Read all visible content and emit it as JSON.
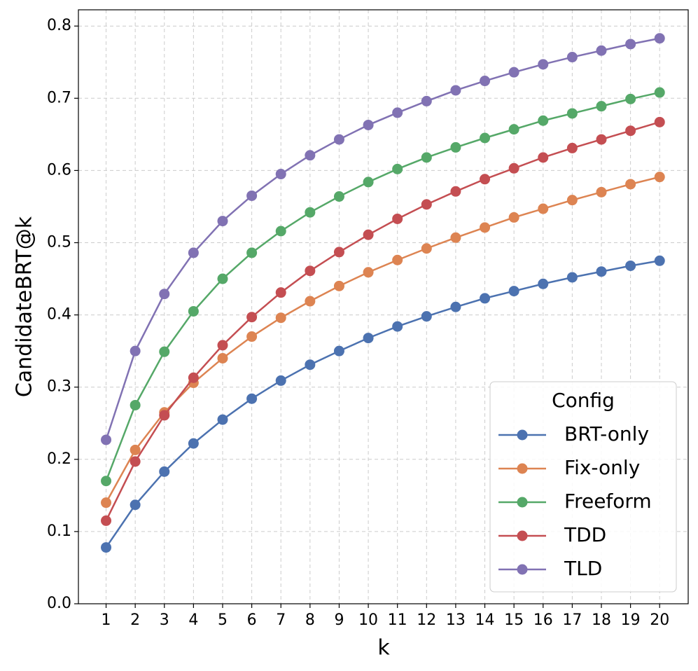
{
  "chart_data": {
    "type": "line",
    "x_label": "k",
    "y_label": "CandidateBRT@k",
    "x": [
      1,
      2,
      3,
      4,
      5,
      6,
      7,
      8,
      9,
      10,
      11,
      12,
      13,
      14,
      15,
      16,
      17,
      18,
      19,
      20
    ],
    "xlim": [
      0.05,
      20.98
    ],
    "xticks": [
      1,
      2,
      3,
      4,
      5,
      6,
      7,
      8,
      9,
      10,
      11,
      12,
      13,
      14,
      15,
      16,
      17,
      18,
      19,
      20
    ],
    "ylim": [
      0,
      0.8225
    ],
    "yticks": [
      {
        "value": 0,
        "label": "0.0"
      },
      0.1,
      0.2,
      0.3,
      0.4,
      0.5,
      0.6,
      0.7,
      0.8
    ],
    "grid": true,
    "legend_title": "Config",
    "legend_position": "lower right",
    "series": [
      {
        "name": "BRT-only",
        "color": "#4c72b0",
        "values": [
          0.078,
          0.137,
          0.183,
          0.222,
          0.255,
          0.284,
          0.309,
          0.331,
          0.35,
          0.368,
          0.384,
          0.398,
          0.411,
          0.423,
          0.433,
          0.443,
          0.452,
          0.46,
          0.468,
          0.475
        ]
      },
      {
        "name": "Fix-only",
        "color": "#dd8452",
        "values": [
          0.14,
          0.213,
          0.265,
          0.306,
          0.34,
          0.37,
          0.396,
          0.419,
          0.44,
          0.459,
          0.476,
          0.492,
          0.507,
          0.521,
          0.535,
          0.547,
          0.559,
          0.57,
          0.581,
          0.591
        ]
      },
      {
        "name": "Freeform",
        "color": "#55a868",
        "values": [
          0.17,
          0.275,
          0.349,
          0.405,
          0.45,
          0.486,
          0.516,
          0.542,
          0.564,
          0.584,
          0.602,
          0.618,
          0.632,
          0.645,
          0.657,
          0.669,
          0.679,
          0.689,
          0.699,
          0.708
        ]
      },
      {
        "name": "TDD",
        "color": "#c44e52",
        "values": [
          0.115,
          0.197,
          0.261,
          0.313,
          0.358,
          0.397,
          0.431,
          0.461,
          0.487,
          0.511,
          0.533,
          0.553,
          0.571,
          0.588,
          0.603,
          0.618,
          0.631,
          0.643,
          0.655,
          0.667
        ]
      },
      {
        "name": "TLD",
        "color": "#8172b3",
        "values": [
          0.227,
          0.35,
          0.429,
          0.486,
          0.53,
          0.565,
          0.595,
          0.621,
          0.643,
          0.663,
          0.68,
          0.696,
          0.711,
          0.724,
          0.736,
          0.747,
          0.757,
          0.766,
          0.775,
          0.783
        ]
      }
    ]
  }
}
